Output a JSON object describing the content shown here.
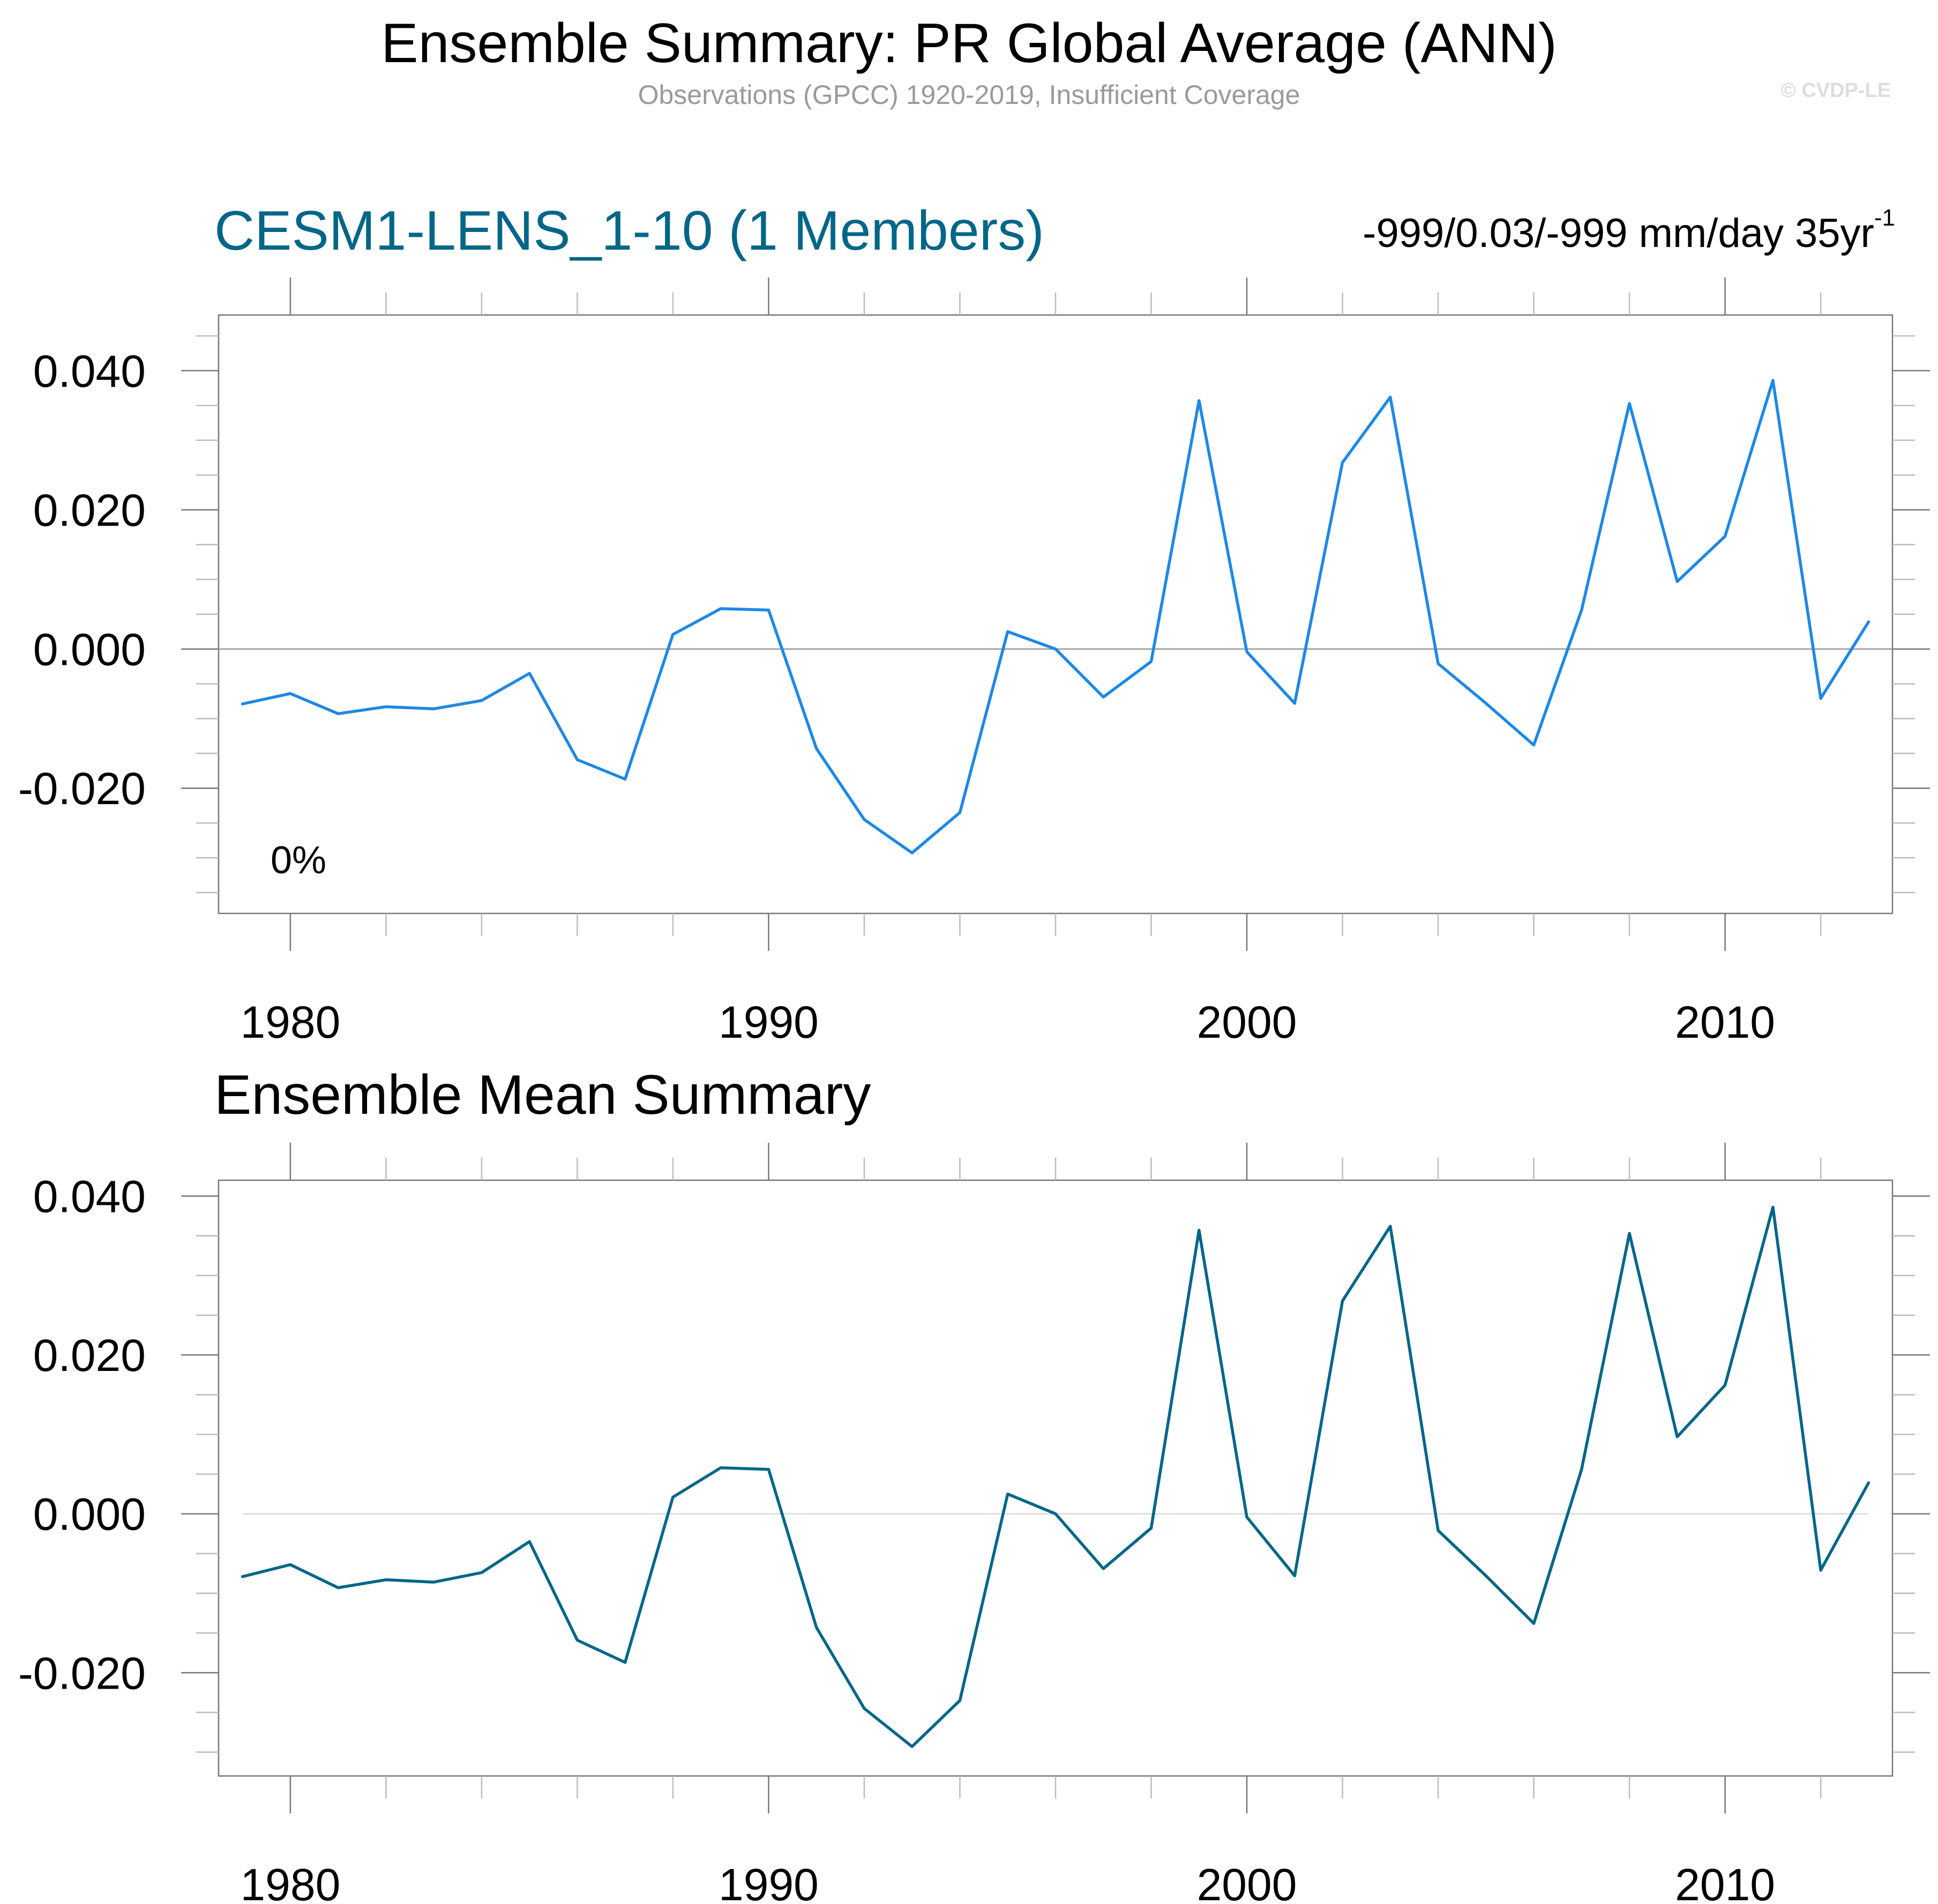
{
  "header": {
    "title": "Ensemble Summary: PR Global Average (ANN)",
    "subtitle": "Observations (GPCC) 1920-2019, Insufficient Coverage",
    "watermark": "© CVDP-LE"
  },
  "panels": [
    {
      "title": "CESM1-LENS_1-10 (1 Members)",
      "title_color": "#006688",
      "stats_text": "-999/0.03/-999 mm/day 35yr",
      "stats_superscript": "-1",
      "annotation": "0%",
      "line_color": "#1e88e5"
    },
    {
      "title": "Ensemble Mean Summary",
      "title_color": "#000000",
      "line_color": "#006688"
    }
  ],
  "chart_data": [
    {
      "type": "line",
      "title": "CESM1-LENS_1-10 (1 Members)",
      "xlabel": "",
      "ylabel": "",
      "xlim": [
        1978.5,
        2013.5
      ],
      "ylim": [
        -0.038,
        0.048
      ],
      "x_ticks": [
        1980,
        1990,
        2000,
        2010
      ],
      "y_ticks": [
        -0.02,
        0.0,
        0.02,
        0.04
      ],
      "y_tick_labels": [
        "-0.020",
        "0.000",
        "0.020",
        "0.040"
      ],
      "x_tick_labels": [
        "1980",
        "1990",
        "2000",
        "2010"
      ],
      "reference_line": 0.0,
      "annotation": "0%",
      "series": [
        {
          "name": "CESM1-LENS_1-10",
          "x": [
            1979,
            1980,
            1981,
            1982,
            1983,
            1984,
            1985,
            1986,
            1987,
            1988,
            1989,
            1990,
            1991,
            1992,
            1993,
            1994,
            1995,
            1996,
            1997,
            1998,
            1999,
            2000,
            2001,
            2002,
            2003,
            2004,
            2005,
            2006,
            2007,
            2008,
            2009,
            2010,
            2011,
            2012,
            2013
          ],
          "values": [
            -0.0079,
            -0.0064,
            -0.0093,
            -0.0083,
            -0.0086,
            -0.0074,
            -0.0035,
            -0.0159,
            -0.0187,
            0.0021,
            0.0058,
            0.0056,
            -0.0143,
            -0.0245,
            -0.0293,
            -0.0235,
            0.0025,
            0.0,
            -0.0069,
            -0.0018,
            0.0357,
            -0.0004,
            -0.0078,
            0.0268,
            0.0362,
            -0.0021,
            -0.0078,
            -0.0138,
            0.0056,
            0.0353,
            0.0097,
            0.0162,
            0.0386,
            -0.0071,
            0.0039
          ]
        }
      ]
    },
    {
      "type": "line",
      "title": "Ensemble Mean Summary",
      "xlabel": "",
      "ylabel": "",
      "xlim": [
        1978.5,
        2013.5
      ],
      "ylim": [
        -0.033,
        0.042
      ],
      "x_ticks": [
        1980,
        1990,
        2000,
        2010
      ],
      "y_ticks": [
        -0.02,
        0.0,
        0.02,
        0.04
      ],
      "y_tick_labels": [
        "-0.020",
        "0.000",
        "0.020",
        "0.040"
      ],
      "x_tick_labels": [
        "1980",
        "1990",
        "2000",
        "2010"
      ],
      "reference_line": 0.0,
      "series": [
        {
          "name": "Ensemble Mean",
          "x": [
            1979,
            1980,
            1981,
            1982,
            1983,
            1984,
            1985,
            1986,
            1987,
            1988,
            1989,
            1990,
            1991,
            1992,
            1993,
            1994,
            1995,
            1996,
            1997,
            1998,
            1999,
            2000,
            2001,
            2002,
            2003,
            2004,
            2005,
            2006,
            2007,
            2008,
            2009,
            2010,
            2011,
            2012,
            2013
          ],
          "values": [
            -0.0079,
            -0.0064,
            -0.0093,
            -0.0083,
            -0.0086,
            -0.0074,
            -0.0035,
            -0.0159,
            -0.0187,
            0.0021,
            0.0058,
            0.0056,
            -0.0143,
            -0.0245,
            -0.0293,
            -0.0235,
            0.0025,
            0.0,
            -0.0069,
            -0.0018,
            0.0357,
            -0.0004,
            -0.0078,
            0.0268,
            0.0362,
            -0.0021,
            -0.0078,
            -0.0138,
            0.0056,
            0.0353,
            0.0097,
            0.0162,
            0.0386,
            -0.0071,
            0.0039
          ]
        }
      ]
    }
  ]
}
